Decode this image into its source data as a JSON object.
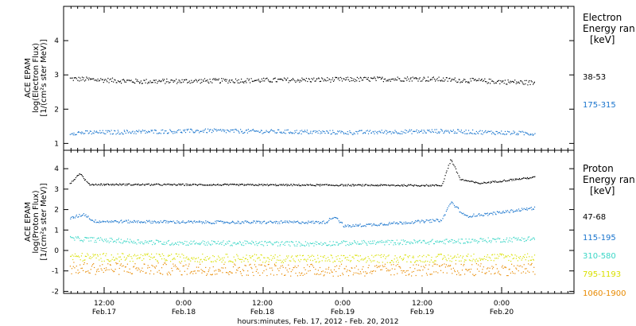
{
  "chart_data": [
    {
      "type": "scatter",
      "title": "",
      "ylabel": [
        "ACE EPAM",
        "log(Electron Flux)",
        "[1/(cm²s ster MeV)]"
      ],
      "ylim": [
        0.8,
        5.0
      ],
      "yticks": [
        "1",
        "2",
        "3",
        "4"
      ],
      "ytick_values": [
        1,
        2,
        3,
        4
      ],
      "legend_title": [
        "Electron",
        "Energy ran",
        "[keV]"
      ],
      "series": [
        {
          "name": "38-53",
          "color": "#000000",
          "level": 2.85,
          "spread": 0.07,
          "segments": [
            [
              0,
              2.9
            ],
            [
              0.15,
              2.82
            ],
            [
              0.4,
              2.85
            ],
            [
              0.55,
              2.87
            ],
            [
              0.75,
              2.9
            ],
            [
              1.0,
              2.78
            ]
          ]
        },
        {
          "name": "175-315",
          "color": "#1874cd",
          "level": 1.35,
          "spread": 0.06,
          "segments": [
            [
              0,
              1.32
            ],
            [
              0.3,
              1.38
            ],
            [
              0.6,
              1.33
            ],
            [
              0.8,
              1.37
            ],
            [
              1.0,
              1.3
            ]
          ]
        }
      ]
    },
    {
      "type": "scatter",
      "title": "",
      "ylabel": [
        "ACE EPAM",
        "log(Proton Flux)",
        "[1/(cm²s ster MeV)]"
      ],
      "ylim": [
        -2.1,
        4.9
      ],
      "yticks": [
        "-2",
        "-1",
        "0",
        "1",
        "2",
        "3",
        "4"
      ],
      "ytick_values": [
        -2,
        -1,
        0,
        1,
        2,
        3,
        4
      ],
      "legend_title": [
        "Proton",
        "Energy ran",
        "[keV]"
      ],
      "series": [
        {
          "name": "47-68",
          "color": "#000000",
          "spread": 0.04,
          "segments": [
            [
              0,
              3.3
            ],
            [
              0.02,
              3.8
            ],
            [
              0.04,
              3.25
            ],
            [
              0.8,
              3.2
            ],
            [
              0.82,
              4.5
            ],
            [
              0.84,
              3.5
            ],
            [
              0.88,
              3.3
            ],
            [
              0.92,
              3.4
            ],
            [
              1.0,
              3.6
            ]
          ]
        },
        {
          "name": "115-195",
          "color": "#1874cd",
          "spread": 0.07,
          "segments": [
            [
              0,
              1.6
            ],
            [
              0.03,
              1.8
            ],
            [
              0.05,
              1.45
            ],
            [
              0.3,
              1.4
            ],
            [
              0.55,
              1.4
            ],
            [
              0.57,
              1.7
            ],
            [
              0.59,
              1.2
            ],
            [
              0.8,
              1.5
            ],
            [
              0.82,
              2.4
            ],
            [
              0.85,
              1.7
            ],
            [
              0.9,
              1.8
            ],
            [
              1.0,
              2.1
            ]
          ]
        },
        {
          "name": "310-580",
          "color": "#3ad6c6",
          "spread": 0.12,
          "segments": [
            [
              0,
              0.6
            ],
            [
              0.2,
              0.4
            ],
            [
              0.5,
              0.35
            ],
            [
              0.8,
              0.45
            ],
            [
              1.0,
              0.6
            ]
          ]
        },
        {
          "name": "795-1193",
          "color": "#d9e000",
          "spread": 0.2,
          "segments": [
            [
              0,
              -0.3
            ],
            [
              0.3,
              -0.35
            ],
            [
              0.6,
              -0.4
            ],
            [
              1.0,
              -0.3
            ]
          ]
        },
        {
          "name": "1060-1900",
          "color": "#e88a00",
          "spread": 0.3,
          "segments": [
            [
              0,
              -0.85
            ],
            [
              0.3,
              -0.9
            ],
            [
              0.6,
              -0.95
            ],
            [
              1.0,
              -0.9
            ]
          ]
        }
      ]
    }
  ],
  "xaxis": {
    "tick_labels": [
      {
        "time": "12:00",
        "date": "Feb.17"
      },
      {
        "time": "0:00",
        "date": "Feb.18"
      },
      {
        "time": "12:00",
        "date": "Feb.18"
      },
      {
        "time": "0:00",
        "date": "Feb.19"
      },
      {
        "time": "12:00",
        "date": "Feb.19"
      },
      {
        "time": "0:00",
        "date": "Feb.20"
      }
    ],
    "title": "hours:minutes, Feb. 17, 2012 - Feb. 20, 2012"
  },
  "colors": {
    "black": "#000000",
    "blue": "#1874cd",
    "cyan": "#3ad6c6",
    "yellow": "#d9e000",
    "orange": "#e88a00"
  }
}
